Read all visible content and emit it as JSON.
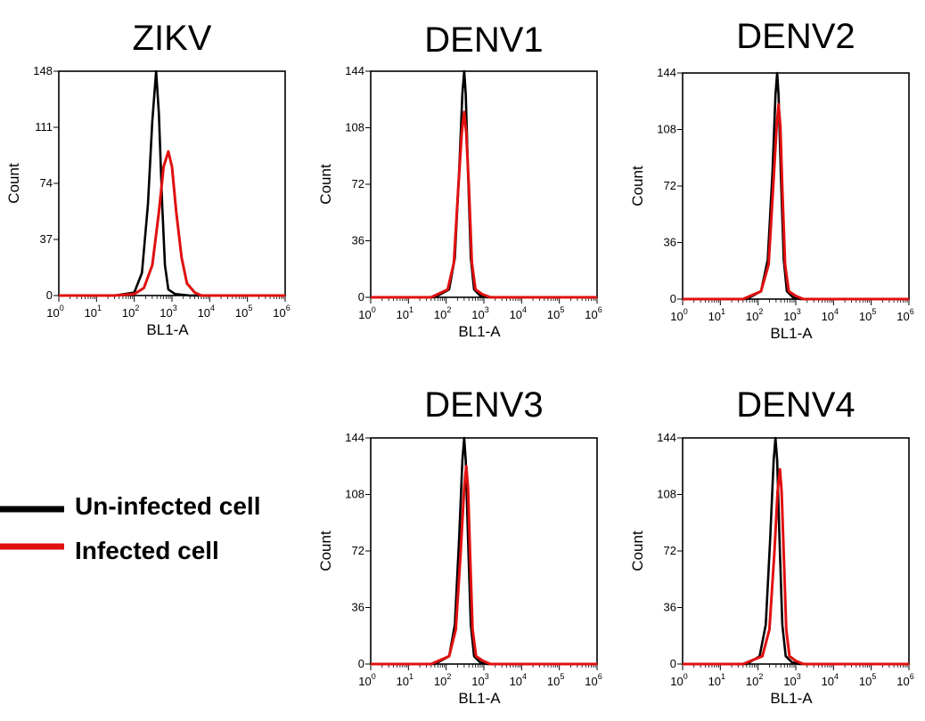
{
  "legend": {
    "items": [
      {
        "label": "Un-infected cell",
        "color": "#000000"
      },
      {
        "label": "Infected cell",
        "color": "#e01010"
      }
    ]
  },
  "chart_data": [
    {
      "type": "line",
      "title": "ZIKV",
      "xlabel": "BL1-A",
      "ylabel": "Count",
      "x_scale": "log",
      "xlim": [
        1,
        1000000
      ],
      "x_ticks": [
        "10^0",
        "10^1",
        "10^2",
        "10^3",
        "10^4",
        "10^5",
        "10^6"
      ],
      "ylim": [
        0,
        148
      ],
      "y_ticks": [
        0,
        37,
        74,
        111,
        148
      ],
      "grid": false,
      "series": [
        {
          "name": "Un-infected cell",
          "color": "#000000",
          "points": [
            [
              1,
              0
            ],
            [
              30,
              0
            ],
            [
              100,
              2
            ],
            [
              160,
              15
            ],
            [
              230,
              60
            ],
            [
              300,
              115
            ],
            [
              380,
              148
            ],
            [
              450,
              120
            ],
            [
              550,
              60
            ],
            [
              650,
              20
            ],
            [
              800,
              4
            ],
            [
              1200,
              1
            ],
            [
              3000,
              0
            ],
            [
              1000000,
              0
            ]
          ]
        },
        {
          "name": "Infected cell",
          "color": "#e01010",
          "points": [
            [
              1,
              0
            ],
            [
              30,
              0
            ],
            [
              100,
              1
            ],
            [
              180,
              5
            ],
            [
              300,
              20
            ],
            [
              450,
              55
            ],
            [
              600,
              85
            ],
            [
              800,
              95
            ],
            [
              1000,
              85
            ],
            [
              1300,
              55
            ],
            [
              1800,
              25
            ],
            [
              2500,
              8
            ],
            [
              4000,
              2
            ],
            [
              6000,
              0
            ],
            [
              1000000,
              0
            ]
          ]
        }
      ]
    },
    {
      "type": "line",
      "title": "DENV1",
      "xlabel": "BL1-A",
      "ylabel": "Count",
      "x_scale": "log",
      "xlim": [
        1,
        1000000
      ],
      "x_ticks": [
        "10^0",
        "10^1",
        "10^2",
        "10^3",
        "10^4",
        "10^5",
        "10^6"
      ],
      "ylim": [
        0,
        144
      ],
      "y_ticks": [
        0,
        36,
        72,
        108,
        144
      ],
      "grid": false,
      "series": [
        {
          "name": "Un-infected cell",
          "color": "#000000",
          "points": [
            [
              1,
              0
            ],
            [
              50,
              0
            ],
            [
              120,
              5
            ],
            [
              170,
              25
            ],
            [
              220,
              80
            ],
            [
              270,
              130
            ],
            [
              300,
              144
            ],
            [
              330,
              130
            ],
            [
              380,
              80
            ],
            [
              450,
              25
            ],
            [
              550,
              5
            ],
            [
              800,
              1
            ],
            [
              1200,
              0
            ],
            [
              1000000,
              0
            ]
          ]
        },
        {
          "name": "Infected cell",
          "color": "#e01010",
          "points": [
            [
              1,
              0
            ],
            [
              40,
              0
            ],
            [
              110,
              5
            ],
            [
              160,
              22
            ],
            [
              210,
              70
            ],
            [
              260,
              105
            ],
            [
              300,
              118
            ],
            [
              340,
              105
            ],
            [
              400,
              70
            ],
            [
              480,
              22
            ],
            [
              600,
              5
            ],
            [
              900,
              2
            ],
            [
              1500,
              0
            ],
            [
              1000000,
              0
            ]
          ]
        }
      ]
    },
    {
      "type": "line",
      "title": "DENV2",
      "xlabel": "BL1-A",
      "ylabel": "Count",
      "x_scale": "log",
      "xlim": [
        1,
        1000000
      ],
      "x_ticks": [
        "10^0",
        "10^1",
        "10^2",
        "10^3",
        "10^4",
        "10^5",
        "10^6"
      ],
      "ylim": [
        0,
        144
      ],
      "y_ticks": [
        0,
        36,
        72,
        108,
        144
      ],
      "grid": false,
      "series": [
        {
          "name": "Un-infected cell",
          "color": "#000000",
          "points": [
            [
              1,
              0
            ],
            [
              50,
              0
            ],
            [
              120,
              5
            ],
            [
              180,
              25
            ],
            [
              240,
              80
            ],
            [
              290,
              130
            ],
            [
              320,
              144
            ],
            [
              350,
              130
            ],
            [
              400,
              80
            ],
            [
              480,
              25
            ],
            [
              580,
              5
            ],
            [
              850,
              1
            ],
            [
              1300,
              0
            ],
            [
              1000000,
              0
            ]
          ]
        },
        {
          "name": "Infected cell",
          "color": "#e01010",
          "points": [
            [
              1,
              0
            ],
            [
              40,
              0
            ],
            [
              120,
              5
            ],
            [
              190,
              22
            ],
            [
              250,
              70
            ],
            [
              310,
              110
            ],
            [
              350,
              124
            ],
            [
              390,
              110
            ],
            [
              440,
              70
            ],
            [
              520,
              22
            ],
            [
              650,
              5
            ],
            [
              1000,
              2
            ],
            [
              1600,
              0
            ],
            [
              1000000,
              0
            ]
          ]
        }
      ]
    },
    {
      "type": "line",
      "title": "DENV3",
      "xlabel": "BL1-A",
      "ylabel": "Count",
      "x_scale": "log",
      "xlim": [
        1,
        1000000
      ],
      "x_ticks": [
        "10^0",
        "10^1",
        "10^2",
        "10^3",
        "10^4",
        "10^5",
        "10^6"
      ],
      "ylim": [
        0,
        144
      ],
      "y_ticks": [
        0,
        36,
        72,
        108,
        144
      ],
      "grid": false,
      "series": [
        {
          "name": "Un-infected cell",
          "color": "#000000",
          "points": [
            [
              1,
              0
            ],
            [
              50,
              0
            ],
            [
              120,
              5
            ],
            [
              170,
              25
            ],
            [
              220,
              80
            ],
            [
              270,
              130
            ],
            [
              300,
              144
            ],
            [
              330,
              130
            ],
            [
              380,
              80
            ],
            [
              450,
              25
            ],
            [
              550,
              5
            ],
            [
              800,
              1
            ],
            [
              1200,
              0
            ],
            [
              1000000,
              0
            ]
          ]
        },
        {
          "name": "Infected cell",
          "color": "#e01010",
          "points": [
            [
              1,
              0
            ],
            [
              40,
              0
            ],
            [
              120,
              5
            ],
            [
              180,
              22
            ],
            [
              240,
              70
            ],
            [
              300,
              112
            ],
            [
              340,
              126
            ],
            [
              380,
              112
            ],
            [
              430,
              70
            ],
            [
              500,
              22
            ],
            [
              620,
              5
            ],
            [
              950,
              2
            ],
            [
              1500,
              0
            ],
            [
              1000000,
              0
            ]
          ]
        }
      ]
    },
    {
      "type": "line",
      "title": "DENV4",
      "xlabel": "BL1-A",
      "ylabel": "Count",
      "x_scale": "log",
      "xlim": [
        1,
        1000000
      ],
      "x_ticks": [
        "10^0",
        "10^1",
        "10^2",
        "10^3",
        "10^4",
        "10^5",
        "10^6"
      ],
      "ylim": [
        0,
        144
      ],
      "y_ticks": [
        0,
        36,
        72,
        108,
        144
      ],
      "grid": false,
      "series": [
        {
          "name": "Un-infected cell",
          "color": "#000000",
          "points": [
            [
              1,
              0
            ],
            [
              50,
              0
            ],
            [
              110,
              5
            ],
            [
              160,
              25
            ],
            [
              210,
              80
            ],
            [
              260,
              130
            ],
            [
              290,
              144
            ],
            [
              320,
              130
            ],
            [
              370,
              80
            ],
            [
              440,
              25
            ],
            [
              540,
              5
            ],
            [
              800,
              1
            ],
            [
              1200,
              0
            ],
            [
              1000000,
              0
            ]
          ]
        },
        {
          "name": "Infected cell",
          "color": "#e01010",
          "points": [
            [
              1,
              0
            ],
            [
              40,
              0
            ],
            [
              130,
              5
            ],
            [
              200,
              22
            ],
            [
              270,
              70
            ],
            [
              330,
              110
            ],
            [
              380,
              124
            ],
            [
              420,
              110
            ],
            [
              480,
              70
            ],
            [
              560,
              22
            ],
            [
              680,
              5
            ],
            [
              1000,
              2
            ],
            [
              1600,
              0
            ],
            [
              1000000,
              0
            ]
          ]
        }
      ]
    }
  ]
}
